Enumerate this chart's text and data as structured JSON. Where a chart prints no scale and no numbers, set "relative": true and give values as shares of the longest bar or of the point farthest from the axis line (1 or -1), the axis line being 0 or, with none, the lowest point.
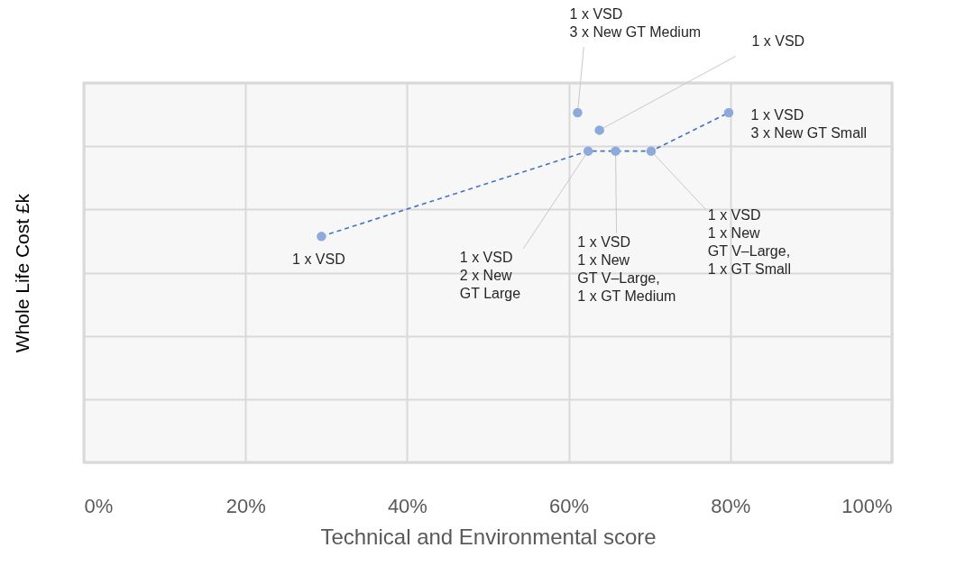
{
  "chart_data": {
    "type": "scatter",
    "xlabel": "Technical and Environmental score",
    "ylabel": "Whole Life Cost £k",
    "relative": true,
    "xlim": [
      0,
      100
    ],
    "xticks": [
      {
        "value": 0,
        "label": "0%"
      },
      {
        "value": 20,
        "label": "20%"
      },
      {
        "value": 40,
        "label": "40%"
      },
      {
        "value": 60,
        "label": "60%"
      },
      {
        "value": 80,
        "label": "80%"
      },
      {
        "value": 100,
        "label": "100%"
      }
    ],
    "grid": true,
    "series": [
      {
        "type": "scatter",
        "marker": "circle",
        "color": "#8eaadb",
        "x": [
          29.4,
          61.1,
          63.8,
          62.4,
          65.8,
          70.2,
          79.8
        ],
        "values": [
          0.646,
          1,
          0.95,
          0.89,
          0.89,
          0.89,
          1
        ]
      },
      {
        "type": "line",
        "marker": "none",
        "color": "#4472c4",
        "line_style": "dashed",
        "x": [
          29.4,
          62.4,
          70.2,
          79.8
        ],
        "values": [
          0.646,
          0.89,
          0.89,
          1
        ]
      }
    ],
    "annotations": [
      {
        "text": "1 x VSD",
        "x": 29.4,
        "y": 0.646
      },
      {
        "text": "1 x VSD\n3 x New GT Medium",
        "x": 61.1,
        "y": 1
      },
      {
        "text": "1 x VSD",
        "x": 63.8,
        "y": 0.95
      },
      {
        "text": "1 x VSD\n3 x New GT Small",
        "x": 79.8,
        "y": 1
      },
      {
        "text": "1 x VSD\n2 x New\nGT Large",
        "x": 62.4,
        "y": 0.89
      },
      {
        "text": "1 x VSD\n1 x New\nGT V–Large,\n1 x GT Medium",
        "x": 65.8,
        "y": 0.89
      },
      {
        "text": "1 x VSD\n1 x New\nGT V–Large,\n1 x GT Small",
        "x": 70.2,
        "y": 0.89
      }
    ]
  }
}
